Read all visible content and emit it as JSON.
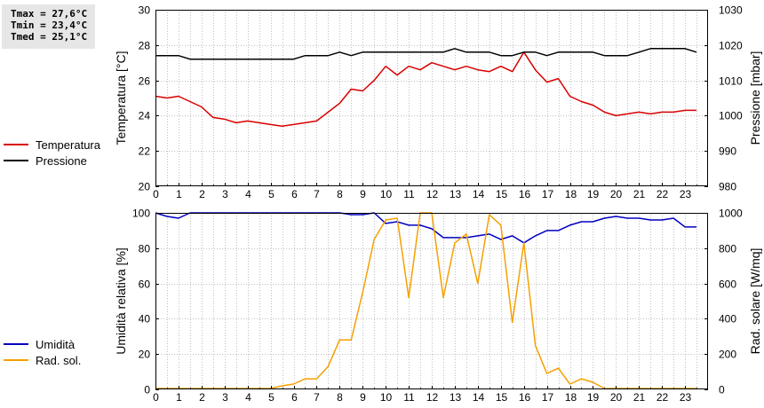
{
  "stats": {
    "tmax": "Tmax = 27,6°C",
    "tmin": "Tmin = 23,4°C",
    "tmed": "Tmed = 25,1°C"
  },
  "colors": {
    "temperature": "#d80000",
    "pressure": "#000000",
    "humidity": "#0000c0",
    "radiation": "#f5a000"
  },
  "chart_data": [
    {
      "type": "line",
      "ylabel": "Temperatura [°C]",
      "y2label": "Pressione [mbar]",
      "xlim": [
        0,
        24
      ],
      "ylim": [
        20,
        30
      ],
      "y2lim": [
        980,
        1030
      ],
      "xticks": [
        0,
        1,
        2,
        3,
        4,
        5,
        6,
        7,
        8,
        9,
        10,
        11,
        12,
        13,
        14,
        15,
        16,
        17,
        18,
        19,
        20,
        21,
        22,
        23
      ],
      "yticks": [
        20,
        22,
        24,
        26,
        28,
        30
      ],
      "y2ticks": [
        980,
        990,
        1000,
        1010,
        1020,
        1030
      ],
      "grid": true,
      "legend": "left",
      "x": [
        0,
        0.5,
        1,
        1.5,
        2,
        2.5,
        3,
        3.5,
        4,
        4.5,
        5,
        5.5,
        6,
        6.5,
        7,
        7.5,
        8,
        8.5,
        9,
        9.5,
        10,
        10.5,
        11,
        11.5,
        12,
        12.5,
        13,
        13.5,
        14,
        14.5,
        15,
        15.5,
        16,
        16.5,
        17,
        17.5,
        18,
        18.5,
        19,
        19.5,
        20,
        20.5,
        21,
        21.5,
        22,
        22.5,
        23,
        23.5
      ],
      "series": [
        {
          "name": "Temperatura",
          "axis": "left",
          "values": [
            25.1,
            25.0,
            25.1,
            24.8,
            24.5,
            23.9,
            23.8,
            23.6,
            23.7,
            23.6,
            23.5,
            23.4,
            23.5,
            23.6,
            23.7,
            24.2,
            24.7,
            25.5,
            25.4,
            26.0,
            26.8,
            26.3,
            26.8,
            26.6,
            27.0,
            26.8,
            26.6,
            26.8,
            26.6,
            26.5,
            26.8,
            26.5,
            27.6,
            26.6,
            25.9,
            26.1,
            25.1,
            24.8,
            24.6,
            24.2,
            24.0,
            24.1,
            24.2,
            24.1,
            24.2,
            24.2,
            24.3,
            24.3
          ]
        },
        {
          "name": "Pressione",
          "axis": "right",
          "values": [
            1017,
            1017,
            1017,
            1016,
            1016,
            1016,
            1016,
            1016,
            1016,
            1016,
            1016,
            1016,
            1016,
            1017,
            1017,
            1017,
            1018,
            1017,
            1018,
            1018,
            1018,
            1018,
            1018,
            1018,
            1018,
            1018,
            1019,
            1018,
            1018,
            1018,
            1017,
            1017,
            1018,
            1018,
            1017,
            1018,
            1018,
            1018,
            1018,
            1017,
            1017,
            1017,
            1018,
            1019,
            1019,
            1019,
            1019,
            1018
          ]
        }
      ]
    },
    {
      "type": "line",
      "ylabel": "Umidità relativa [%]",
      "y2label": "Rad. solare [W/mq]",
      "xlim": [
        0,
        24
      ],
      "ylim": [
        0,
        100
      ],
      "y2lim": [
        0,
        1000
      ],
      "xticks": [
        0,
        1,
        2,
        3,
        4,
        5,
        6,
        7,
        8,
        9,
        10,
        11,
        12,
        13,
        14,
        15,
        16,
        17,
        18,
        19,
        20,
        21,
        22,
        23
      ],
      "yticks": [
        0,
        20,
        40,
        60,
        80,
        100
      ],
      "y2ticks": [
        0,
        200,
        400,
        600,
        800,
        1000
      ],
      "grid": true,
      "legend": "left",
      "x": [
        0,
        0.5,
        1,
        1.5,
        2,
        2.5,
        3,
        3.5,
        4,
        4.5,
        5,
        5.5,
        6,
        6.5,
        7,
        7.5,
        8,
        8.5,
        9,
        9.5,
        10,
        10.5,
        11,
        11.5,
        12,
        12.5,
        13,
        13.5,
        14,
        14.5,
        15,
        15.5,
        16,
        16.5,
        17,
        17.5,
        18,
        18.5,
        19,
        19.5,
        20,
        20.5,
        21,
        21.5,
        22,
        22.5,
        23,
        23.5
      ],
      "series": [
        {
          "name": "Umidità",
          "axis": "left",
          "values": [
            100,
            98,
            97,
            100,
            100,
            100,
            100,
            100,
            100,
            100,
            100,
            100,
            100,
            100,
            100,
            100,
            100,
            99,
            99,
            100,
            94,
            95,
            93,
            93,
            91,
            86,
            86,
            86,
            87,
            88,
            85,
            87,
            83,
            87,
            90,
            90,
            93,
            95,
            95,
            97,
            98,
            97,
            97,
            96,
            96,
            97,
            92,
            92
          ]
        },
        {
          "name": "Rad. sol.",
          "axis": "right",
          "values": [
            5,
            5,
            5,
            5,
            5,
            5,
            5,
            5,
            5,
            5,
            5,
            20,
            30,
            60,
            60,
            130,
            280,
            280,
            550,
            850,
            960,
            970,
            520,
            1000,
            1000,
            520,
            830,
            880,
            600,
            990,
            930,
            380,
            830,
            250,
            90,
            120,
            30,
            60,
            40,
            5,
            5,
            5,
            5,
            5,
            5,
            5,
            5,
            5
          ]
        }
      ]
    }
  ]
}
